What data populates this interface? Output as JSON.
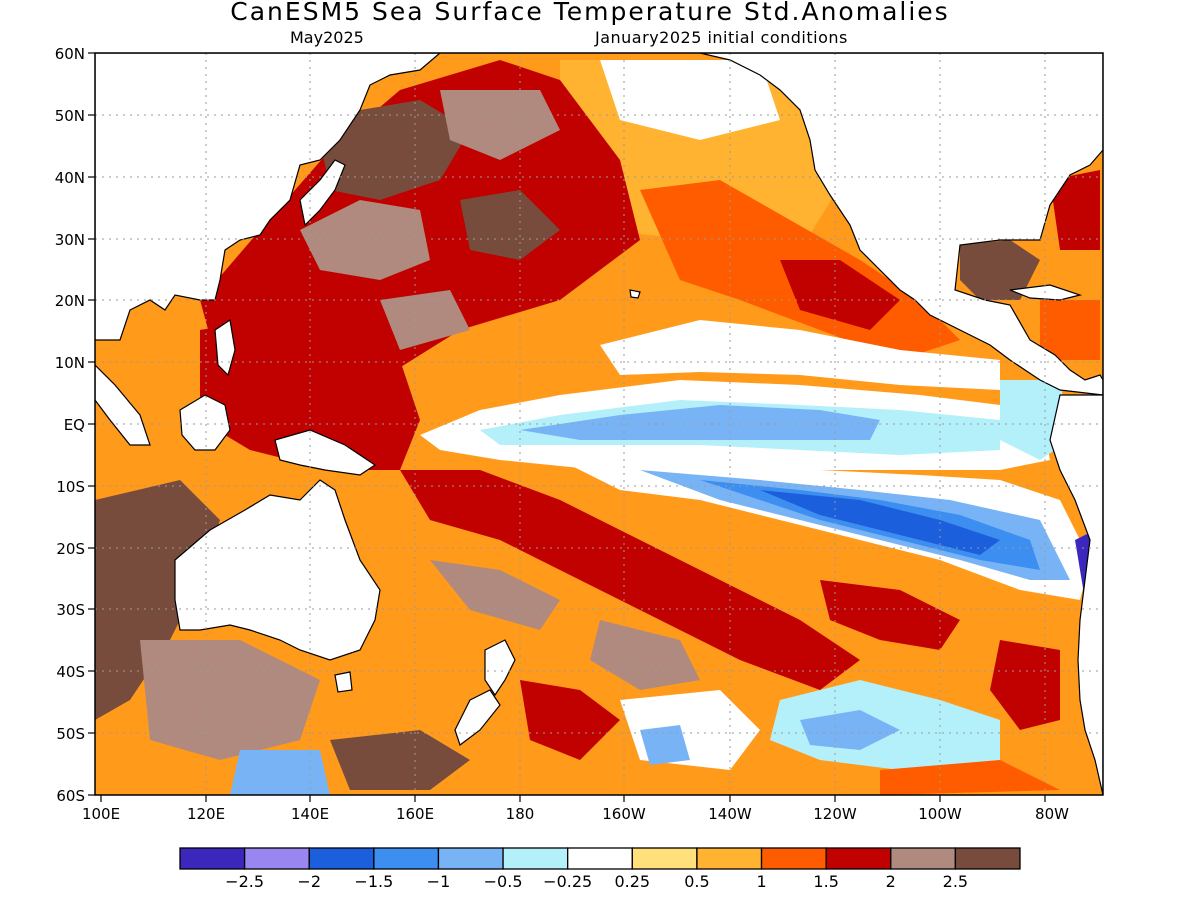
{
  "title": "CanESM5 Sea Surface Temperature Std.Anomalies",
  "subtitle_left": "May2025",
  "subtitle_right": "January2025 initial conditions",
  "map": {
    "lon_range": [
      "100E",
      "70W"
    ],
    "lat_range": [
      "60S",
      "60N"
    ],
    "gridlines": true,
    "lat_labels": [
      "60N",
      "50N",
      "40N",
      "30N",
      "20N",
      "10N",
      "EQ",
      "10S",
      "20S",
      "30S",
      "40S",
      "50S",
      "60S"
    ],
    "lon_labels": [
      "100E",
      "120E",
      "140E",
      "160E",
      "180",
      "160W",
      "140W",
      "120W",
      "100W",
      "80W"
    ]
  },
  "colorbar": {
    "colors": [
      "#3b27bb",
      "#9a86f0",
      "#1c5fdc",
      "#3c8ef0",
      "#78b4f5",
      "#b4f0fa",
      "#ffffff",
      "#ffe07a",
      "#ffb331",
      "#ff5c00",
      "#c10000",
      "#b08a7e",
      "#784c3c"
    ],
    "labels": [
      "−2.5",
      "−2",
      "−1.5",
      "−1",
      "−0.5",
      "−0.25",
      "0.25",
      "0.5",
      "1",
      "1.5",
      "2",
      "2.5"
    ]
  }
}
